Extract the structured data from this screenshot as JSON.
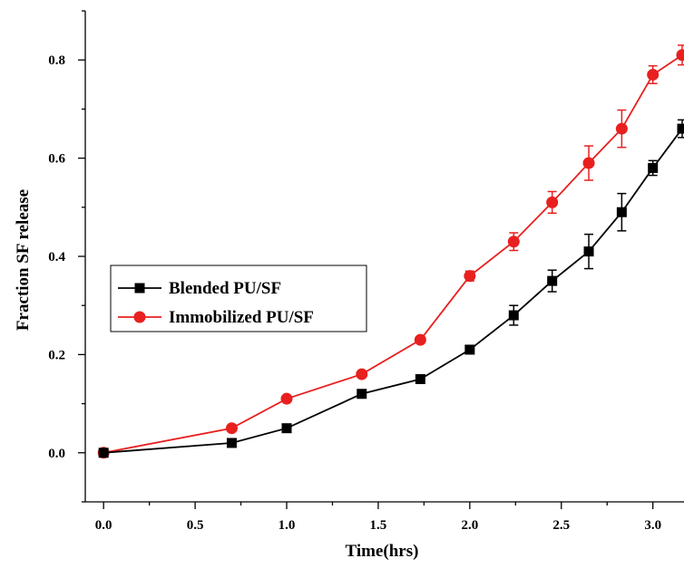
{
  "chart_data": {
    "type": "line",
    "xlabel": "Time(hrs)",
    "ylabel": "Fraction SF release",
    "xlim": [
      -0.1,
      3.17
    ],
    "ylim": [
      -0.1,
      0.9
    ],
    "x_ticks": [
      "0.0",
      "0.5",
      "1.0",
      "1.5",
      "2.0",
      "2.5",
      "3.0"
    ],
    "y_ticks": [
      "0.0",
      "0.2",
      "0.4",
      "0.6",
      "0.8"
    ],
    "legend_position": "middle-left",
    "grid": false,
    "series": [
      {
        "name": "Blended PU/SF",
        "color": "#000000",
        "marker": "square",
        "x": [
          0.0,
          0.7,
          1.0,
          1.41,
          1.73,
          2.0,
          2.24,
          2.45,
          2.65,
          2.83,
          3.0,
          3.16
        ],
        "y": [
          0.0,
          0.02,
          0.05,
          0.12,
          0.15,
          0.21,
          0.28,
          0.35,
          0.41,
          0.49,
          0.58,
          0.66
        ],
        "err": [
          0.005,
          0.005,
          0.005,
          0.005,
          0.005,
          0.008,
          0.02,
          0.022,
          0.035,
          0.038,
          0.015,
          0.018
        ]
      },
      {
        "name": "Immobilized PU/SF",
        "color": "#e8201f",
        "marker": "circle",
        "x": [
          0.0,
          0.7,
          1.0,
          1.41,
          1.73,
          2.0,
          2.24,
          2.45,
          2.65,
          2.83,
          3.0,
          3.16
        ],
        "y": [
          0.0,
          0.05,
          0.11,
          0.16,
          0.23,
          0.36,
          0.43,
          0.51,
          0.59,
          0.66,
          0.77,
          0.81
        ],
        "err": [
          0.005,
          0.005,
          0.005,
          0.005,
          0.005,
          0.01,
          0.018,
          0.022,
          0.035,
          0.038,
          0.018,
          0.02
        ]
      }
    ]
  }
}
